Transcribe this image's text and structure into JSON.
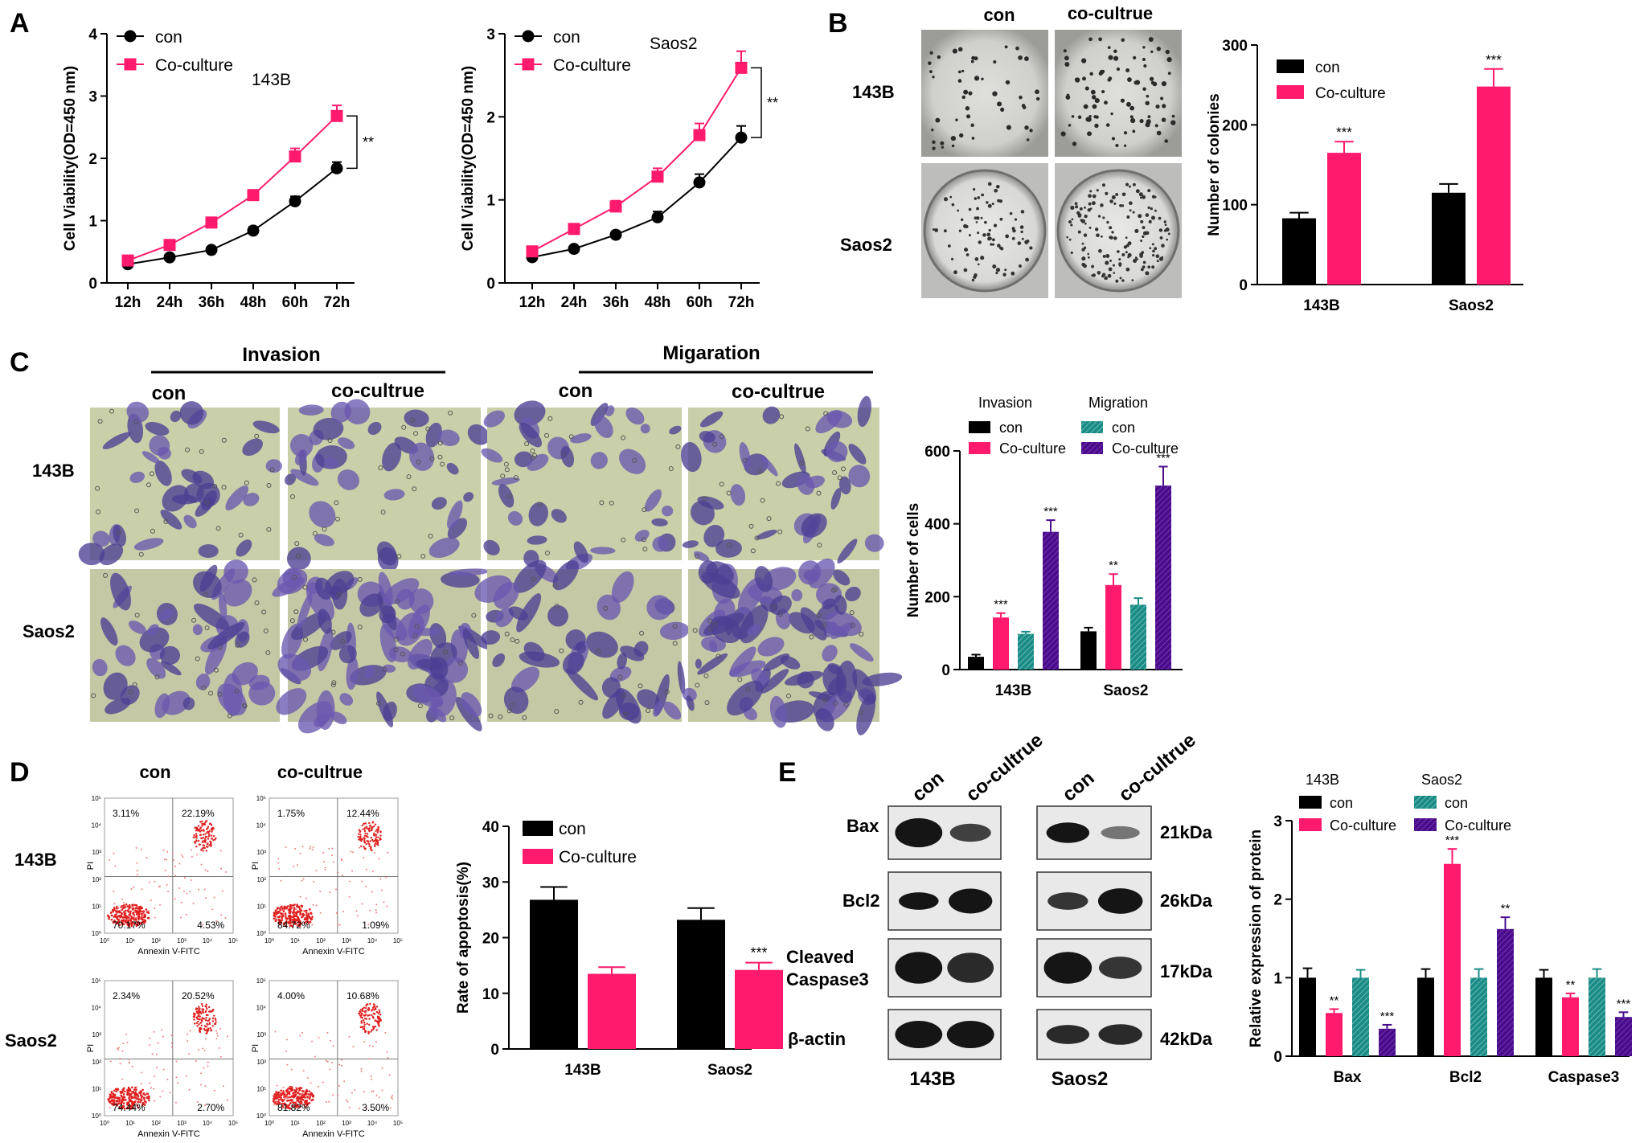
{
  "panels": {
    "A": "A",
    "B": "B",
    "C": "C",
    "D": "D",
    "E": "E"
  },
  "colors": {
    "con": "#000000",
    "coculture": "#ff1a6e",
    "teal": "#1a8c86",
    "purple": "#4a0c8a"
  },
  "panel_b": {
    "plate_col_labels": [
      "con",
      "co-cultrue"
    ],
    "plate_row_labels": [
      "143B",
      "Saos2"
    ]
  },
  "panel_c": {
    "group_labels": [
      "Invasion",
      "Migaration"
    ],
    "col_labels": [
      "con",
      "co-cultrue",
      "con",
      "co-cultrue"
    ],
    "row_labels": [
      "143B",
      "Saos2"
    ]
  },
  "panel_d": {
    "col_labels": [
      "con",
      "co-cultrue"
    ],
    "row_labels": [
      "143B",
      "Saos2"
    ],
    "flow_x_label": "Annexin V-FITC",
    "flow_y_label": "PI",
    "flow_ticks": [
      "10⁰",
      "10¹",
      "10²",
      "10³",
      "10⁴",
      "10⁵"
    ],
    "quadrants": [
      {
        "q1": "3.11%",
        "q2": "22.19%",
        "q3": "70.17%",
        "q4": "4.53%"
      },
      {
        "q1": "1.75%",
        "q2": "12.44%",
        "q3": "84.72%",
        "q4": "1.09%"
      },
      {
        "q1": "2.34%",
        "q2": "20.52%",
        "q3": "74.44%",
        "q4": "2.70%"
      },
      {
        "q1": "4.00%",
        "q2": "10.68%",
        "q3": "81.82%",
        "q4": "3.50%"
      }
    ]
  },
  "panel_e": {
    "blot_col_labels": [
      "con",
      "co-cultrue"
    ],
    "proteins": [
      "Bax",
      "Bcl2",
      "Cleaved Caspase3",
      "β-actin"
    ],
    "sizes": [
      "21kDa",
      "26kDa",
      "17kDa",
      "42kDa"
    ],
    "cell_lines": [
      "143B",
      "Saos2"
    ]
  },
  "chart_data": [
    {
      "id": "viability-143b",
      "type": "line",
      "x": [
        "12h",
        "24h",
        "36h",
        "48h",
        "60h",
        "72h"
      ],
      "series": [
        {
          "name": "con",
          "values": [
            0.3,
            0.41,
            0.53,
            0.84,
            1.31,
            1.84
          ],
          "errors": [
            0.03,
            0.04,
            0.04,
            0.06,
            0.08,
            0.1
          ]
        },
        {
          "name": "Co-culture",
          "values": [
            0.36,
            0.61,
            0.97,
            1.41,
            2.03,
            2.68
          ],
          "errors": [
            0.04,
            0.05,
            0.06,
            0.08,
            0.13,
            0.17
          ]
        }
      ],
      "ylabel": "Cell Viability(OD=450 nm)",
      "ylim": [
        0,
        4
      ],
      "yticks": [
        0,
        1,
        2,
        3,
        4
      ],
      "annotation": "143B",
      "significance": "**"
    },
    {
      "id": "viability-saos2",
      "type": "line",
      "x": [
        "12h",
        "24h",
        "36h",
        "48h",
        "60h",
        "72h"
      ],
      "series": [
        {
          "name": "con",
          "values": [
            0.31,
            0.41,
            0.58,
            0.79,
            1.21,
            1.75
          ],
          "errors": [
            0.03,
            0.03,
            0.04,
            0.07,
            0.1,
            0.14
          ]
        },
        {
          "name": "Co-culture",
          "values": [
            0.38,
            0.65,
            0.92,
            1.28,
            1.78,
            2.59
          ],
          "errors": [
            0.04,
            0.05,
            0.07,
            0.1,
            0.14,
            0.2
          ]
        }
      ],
      "ylabel": "Cell Viability(OD=450 nm)",
      "ylim": [
        0,
        3
      ],
      "yticks": [
        0,
        1,
        2,
        3
      ],
      "annotation": "Saos2",
      "significance": "**"
    },
    {
      "id": "colonies",
      "type": "bar",
      "categories": [
        "143B",
        "Saos2"
      ],
      "series": [
        {
          "name": "con",
          "values": [
            83,
            115
          ],
          "errors": [
            7,
            11
          ]
        },
        {
          "name": "Co-culture",
          "values": [
            165,
            248
          ],
          "errors": [
            14,
            22
          ]
        }
      ],
      "ylabel": "Number of colonies",
      "ylim": [
        0,
        300
      ],
      "yticks": [
        0,
        100,
        200,
        300
      ],
      "significance": [
        "",
        "***"
      ]
    },
    {
      "id": "cells",
      "type": "bar",
      "categories": [
        "143B",
        "Saos2"
      ],
      "legend_groups": [
        "Invasion",
        "Migration"
      ],
      "series": [
        {
          "name": "con",
          "values": [
            35,
            105
          ],
          "errors": [
            6,
            10
          ]
        },
        {
          "name": "Co-culture",
          "values": [
            143,
            232
          ],
          "errors": [
            12,
            30
          ]
        },
        {
          "name": "con",
          "values": [
            98,
            178
          ],
          "errors": [
            6,
            18
          ]
        },
        {
          "name": "Co-culture",
          "values": [
            378,
            505
          ],
          "errors": [
            32,
            52
          ]
        }
      ],
      "ylabel": "Number of cells",
      "ylim": [
        0,
        600
      ],
      "yticks": [
        0,
        200,
        400,
        600
      ],
      "significance": [
        [
          "",
          "***",
          "",
          "***"
        ],
        [
          "",
          "**",
          "",
          "***"
        ]
      ]
    },
    {
      "id": "apoptosis",
      "type": "bar",
      "categories": [
        "143B",
        "Saos2"
      ],
      "series": [
        {
          "name": "con",
          "values": [
            26.8,
            23.2
          ],
          "errors": [
            2.3,
            2.1
          ]
        },
        {
          "name": "Co-culture",
          "values": [
            13.5,
            14.2
          ],
          "errors": [
            1.2,
            1.3
          ]
        }
      ],
      "ylabel": "Rate of apoptosis(%)",
      "ylim": [
        0,
        40
      ],
      "yticks": [
        0,
        10,
        20,
        30,
        40
      ],
      "significance": [
        "",
        "***"
      ]
    },
    {
      "id": "protein",
      "type": "bar",
      "categories": [
        "Bax",
        "Bcl2",
        "Caspase3"
      ],
      "legend_groups": [
        "143B",
        "Saos2"
      ],
      "series": [
        {
          "name": "con",
          "values": [
            1.0,
            1.0,
            1.0
          ],
          "errors": [
            0.12,
            0.11,
            0.1
          ]
        },
        {
          "name": "Co-culture",
          "values": [
            0.55,
            2.45,
            0.75
          ],
          "errors": [
            0.05,
            0.19,
            0.05
          ]
        },
        {
          "name": "con",
          "values": [
            1.0,
            1.0,
            1.0
          ],
          "errors": [
            0.1,
            0.11,
            0.11
          ]
        },
        {
          "name": "Co-culture",
          "values": [
            0.35,
            1.62,
            0.5
          ],
          "errors": [
            0.05,
            0.15,
            0.06
          ]
        }
      ],
      "ylabel": "Relative expression of protein",
      "ylim": [
        0,
        3
      ],
      "yticks": [
        0,
        1,
        2,
        3
      ],
      "significance": [
        [
          "",
          "**",
          "",
          "***"
        ],
        [
          "",
          "***",
          "",
          "**"
        ],
        [
          "",
          "**",
          "",
          "***"
        ]
      ]
    }
  ]
}
